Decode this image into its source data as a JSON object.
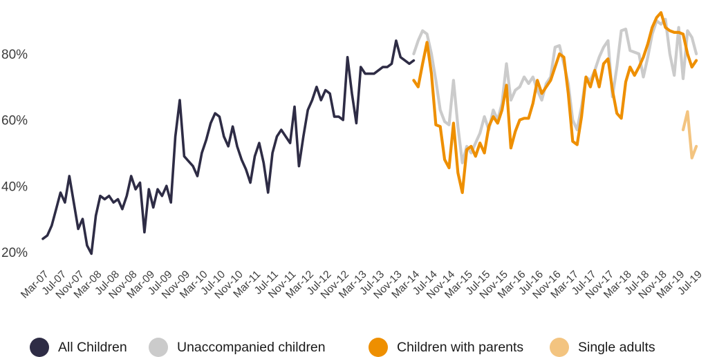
{
  "chart_data": {
    "type": "line",
    "title": "",
    "unit": "percent",
    "grid": false,
    "y_axis": {
      "tick_labels": [
        "20%",
        "40%",
        "60%",
        "80%"
      ],
      "tick_values": [
        20,
        40,
        60,
        80
      ],
      "ylim": [
        14,
        95
      ]
    },
    "x_axis": {
      "tick_every_n_months": 4,
      "range": "Mar-07 to Jul-19 (monthly)",
      "tick_labels": [
        "Mar-07",
        "Jul-07",
        "Nov-07",
        "Mar-08",
        "Jul-08",
        "Nov-08",
        "Mar-09",
        "Jul-09",
        "Nov-09",
        "Mar-10",
        "Jul-10",
        "Nov-10",
        "Mar-11",
        "Jul-11",
        "Nov-11",
        "Mar-12",
        "Jul-12",
        "Nov-12",
        "Mar-13",
        "Jul-13",
        "Nov-13",
        "Mar-14",
        "Jul-14",
        "Nov-14",
        "Mar-15",
        "Jul-15",
        "Nov-15",
        "Mar-16",
        "Jul-16",
        "Nov-16",
        "Mar-17",
        "Jul-17",
        "Nov-17",
        "Mar-18",
        "Jul-18",
        "Nov-18",
        "Mar-19",
        "Jul-19"
      ]
    },
    "series": [
      {
        "name": "All Children",
        "color": "#2e2c45",
        "start_month": "Mar-07",
        "start_index": 0,
        "values": [
          24,
          25,
          28,
          33,
          38,
          35,
          43,
          35,
          27,
          30,
          22,
          19.5,
          31,
          37,
          36,
          37,
          35,
          36,
          33,
          37,
          43,
          39,
          41,
          26,
          39,
          33.5,
          39,
          37,
          40,
          35,
          55,
          66,
          49,
          47.5,
          46,
          43,
          50,
          54,
          59,
          62,
          61,
          55,
          52,
          58,
          52,
          48,
          45,
          41,
          49,
          53,
          47,
          38,
          50,
          55,
          57,
          55,
          53,
          64,
          46,
          55,
          63,
          66,
          70,
          66,
          69,
          68,
          61,
          61,
          60,
          79,
          68,
          59,
          76,
          74,
          74,
          74,
          75,
          76,
          76,
          77,
          84,
          79,
          78,
          77,
          78
        ]
      },
      {
        "name": "Unaccompanied children",
        "color": "#cbcbcb",
        "start_month": "Mar-14",
        "start_index": 84,
        "values": [
          80,
          84,
          87,
          86,
          80,
          72,
          63,
          59.5,
          58.5,
          72,
          58,
          47,
          52,
          50,
          53,
          56,
          61,
          57,
          63,
          60,
          65,
          77,
          66,
          69,
          70,
          73,
          71,
          73,
          69,
          66,
          71,
          73,
          82,
          82.5,
          77,
          71,
          60,
          57,
          64,
          73,
          72,
          75,
          79,
          82,
          84,
          67,
          76,
          87,
          87.5,
          81,
          80.5,
          80,
          73,
          79,
          86,
          90,
          89,
          90.5,
          80,
          73.5,
          88,
          72.5,
          87,
          85,
          80
        ]
      },
      {
        "name": "Children with parents",
        "color": "#ee8f00",
        "start_month": "Mar-14",
        "start_index": 84,
        "values": [
          72,
          70,
          77,
          83.5,
          74,
          58.5,
          58,
          48,
          45.5,
          59,
          44,
          38,
          51,
          52,
          49,
          53,
          50,
          58,
          61,
          59,
          63,
          70.5,
          51.5,
          56.5,
          60,
          60.5,
          60.5,
          65,
          72,
          68,
          70,
          72,
          76,
          80,
          79,
          68,
          53.5,
          52.5,
          61,
          73,
          70,
          75,
          70,
          77,
          78.5,
          69,
          62,
          60.5,
          71.5,
          76,
          73.5,
          76,
          79,
          83,
          88,
          91,
          92.5,
          88,
          87,
          86.5,
          86.5,
          86,
          80,
          76,
          78
        ]
      },
      {
        "name": "Single adults",
        "color": "#f3c480",
        "start_month": "Apr-19",
        "start_index": 145,
        "values": [
          57,
          62.5,
          48.5,
          52
        ]
      }
    ],
    "legend": {
      "position": "bottom",
      "items": [
        "All Children",
        "Unaccompanied children",
        "Children with parents",
        "Single adults"
      ]
    }
  }
}
